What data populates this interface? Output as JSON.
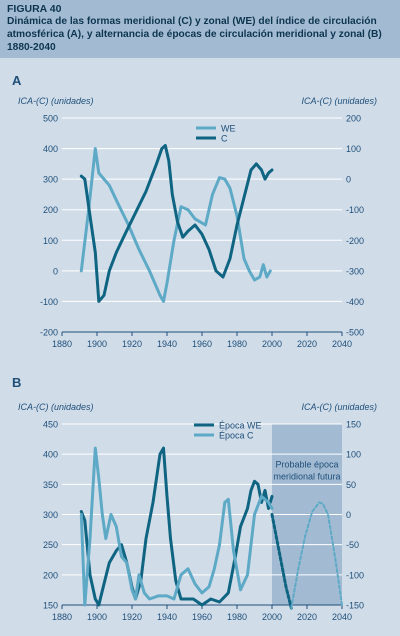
{
  "header": {
    "figure_label": "FIGURA 40",
    "title": "Dinámica de las formas meridional (C) y zonal (WE) del índice de circulación atmosférica (A), y alternancia de épocas de circulación meridional y zonal (B) 1880-2040"
  },
  "colors": {
    "header_bg": "#a2bbd2",
    "panel_bg": "#d0dde9",
    "dark_series": "#0f6482",
    "light_series": "#5ea9c6",
    "future_shade": "#a2bbd2",
    "text": "#1f4e79"
  },
  "chart_data": [
    {
      "panel": "A",
      "type": "line",
      "ylabel_left": "ICA-(C) (unidades)",
      "ylabel_right": "ICA-(C) (unidades)",
      "xlim": [
        1880,
        2040
      ],
      "xticks": [
        "1880",
        "1900",
        "1920",
        "1940",
        "1960",
        "1980",
        "2000",
        "2020",
        "2040"
      ],
      "ylim_left": [
        -200,
        500
      ],
      "yticks_left": [
        "500",
        "400",
        "300",
        "200",
        "100",
        "0",
        "-100",
        "-200"
      ],
      "ylim_right": [
        -500,
        200
      ],
      "yticks_right": [
        "200",
        "100",
        "0",
        "-100",
        "-200",
        "-300",
        "-400",
        "-500"
      ],
      "grid": "y",
      "legend": "top-center",
      "series": [
        {
          "name": "WE",
          "axis": "right",
          "style": "light",
          "x": [
            1891,
            1895,
            1899,
            1901,
            1904,
            1907,
            1912,
            1918,
            1924,
            1930,
            1936,
            1938,
            1940,
            1944,
            1948,
            1952,
            1956,
            1962,
            1966,
            1970,
            1973,
            1976,
            1980,
            1984,
            1987,
            1990,
            1993,
            1995,
            1997,
            1999
          ],
          "y": [
            -300,
            -110,
            100,
            20,
            0,
            -20,
            -80,
            -150,
            -230,
            -300,
            -380,
            -400,
            -340,
            -200,
            -90,
            -100,
            -130,
            -150,
            -50,
            5,
            0,
            -30,
            -120,
            -260,
            -300,
            -330,
            -320,
            -280,
            -320,
            -300
          ]
        },
        {
          "name": "C",
          "axis": "left",
          "style": "dark",
          "x": [
            1891,
            1893,
            1896,
            1899,
            1901,
            1904,
            1907,
            1911,
            1916,
            1922,
            1928,
            1934,
            1937,
            1939,
            1941,
            1943,
            1946,
            1949,
            1952,
            1956,
            1960,
            1964,
            1968,
            1972,
            1976,
            1980,
            1984,
            1988,
            1991,
            1994,
            1996,
            1998,
            2000
          ],
          "y": [
            310,
            300,
            180,
            60,
            -100,
            -80,
            0,
            60,
            120,
            190,
            260,
            350,
            400,
            410,
            360,
            250,
            160,
            110,
            130,
            150,
            120,
            70,
            0,
            -20,
            40,
            150,
            240,
            330,
            350,
            330,
            300,
            320,
            330
          ]
        }
      ]
    },
    {
      "panel": "B",
      "type": "line",
      "ylabel_left": "ICA-(C) (unidades)",
      "ylabel_right": "ICA-(C) (unidades)",
      "xlim": [
        1880,
        2040
      ],
      "xticks": [
        "1880",
        "1900",
        "1920",
        "1940",
        "1960",
        "1980",
        "2000",
        "2020",
        "2040"
      ],
      "ylim_left": [
        150,
        450
      ],
      "yticks_left": [
        "450",
        "400",
        "350",
        "300",
        "250",
        "200",
        "150"
      ],
      "ylim_right": [
        -150,
        150
      ],
      "yticks_right": [
        "150",
        "100",
        "50",
        "0",
        "-50",
        "-100",
        "-150"
      ],
      "grid": "y",
      "legend": "top-center",
      "annotation": "Probable época meridional futura",
      "shaded_region": [
        2000,
        2040
      ],
      "series": [
        {
          "name": "Época WE",
          "axis": "left",
          "style": "dark",
          "x": [
            1891,
            1893,
            1896,
            1899,
            1901,
            1904,
            1907,
            1911,
            1914,
            1917,
            1920,
            1922,
            1925,
            1928,
            1932,
            1936,
            1938,
            1940,
            1942,
            1945,
            1948,
            1952,
            1955,
            1960,
            1965,
            1970,
            1975,
            1979,
            1982,
            1986,
            1988,
            1990,
            1992,
            1994,
            1996,
            1998,
            2000
          ],
          "y": [
            305,
            290,
            200,
            160,
            150,
            185,
            220,
            240,
            250,
            220,
            180,
            160,
            190,
            260,
            320,
            400,
            410,
            330,
            260,
            190,
            160,
            160,
            160,
            150,
            160,
            155,
            170,
            230,
            280,
            310,
            340,
            355,
            350,
            320,
            340,
            310,
            330
          ]
        },
        {
          "name": "Época C",
          "axis": "left",
          "style": "light",
          "x": [
            1891,
            1893,
            1896,
            1899,
            1901,
            1903,
            1905,
            1908,
            1911,
            1914,
            1917,
            1920,
            1922,
            1924,
            1927,
            1930,
            1935,
            1940,
            1944,
            1948,
            1952,
            1956,
            1960,
            1964,
            1967,
            1970,
            1973,
            1975,
            1978,
            1982,
            1986,
            1990,
            1994,
            1998,
            2000
          ],
          "y": [
            300,
            150,
            260,
            410,
            360,
            300,
            260,
            300,
            280,
            230,
            220,
            175,
            160,
            200,
            170,
            160,
            165,
            165,
            160,
            200,
            210,
            185,
            170,
            180,
            210,
            250,
            320,
            325,
            240,
            175,
            200,
            300,
            330,
            320,
            310
          ]
        },
        {
          "name": "forecast-we",
          "axis": "left",
          "style": "dark-dotted",
          "x": [
            2000,
            2004,
            2008,
            2011
          ],
          "y": [
            300,
            240,
            180,
            145
          ]
        },
        {
          "name": "forecast-c",
          "axis": "left",
          "style": "light-dotted",
          "x": [
            2011,
            2015,
            2019,
            2023,
            2027,
            2029,
            2032,
            2036,
            2040
          ],
          "y": [
            145,
            210,
            265,
            305,
            320,
            318,
            300,
            230,
            150
          ]
        }
      ]
    }
  ]
}
